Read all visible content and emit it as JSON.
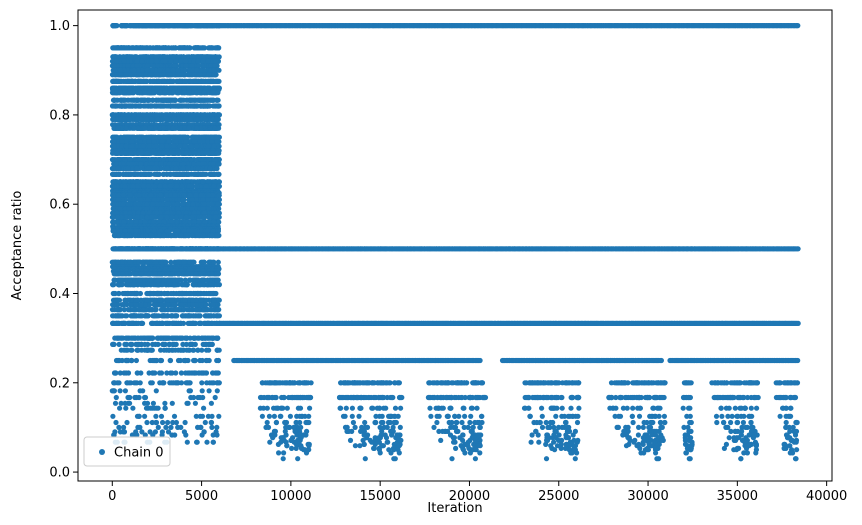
{
  "chart_data": {
    "type": "scatter",
    "xlabel": "Iteration",
    "ylabel": "Acceptance ratio",
    "xlim": [
      -1920,
      40300
    ],
    "ylim": [
      -0.02,
      1.035
    ],
    "xticks": [
      0,
      5000,
      10000,
      15000,
      20000,
      25000,
      30000,
      35000,
      40000
    ],
    "xtick_labels": [
      "0",
      "5000",
      "10000",
      "15000",
      "20000",
      "25000",
      "30000",
      "35000",
      "40000"
    ],
    "yticks": [
      0.0,
      0.2,
      0.4,
      0.6,
      0.8,
      1.0
    ],
    "ytick_labels": [
      "0.0",
      "0.2",
      "0.4",
      "0.6",
      "0.8",
      "1.0"
    ],
    "grid": false,
    "legend": {
      "position": "lower-left",
      "entries": [
        "Chain 0"
      ]
    },
    "colors": {
      "series": "#1f77b4"
    },
    "series": [
      {
        "name": "Chain 0",
        "marker": "circle",
        "segments": [
          {
            "x_range": [
              0,
              6000
            ],
            "y_values": [
              1.0,
              0.95,
              0.93,
              0.92,
              0.91,
              0.9,
              0.89,
              0.875,
              0.86,
              0.857,
              0.85,
              0.833,
              0.82,
              0.8,
              0.79,
              0.778,
              0.77,
              0.75,
              0.74,
              0.73,
              0.72,
              0.714,
              0.7,
              0.69,
              0.68,
              0.667,
              0.65,
              0.64,
              0.63,
              0.625,
              0.62,
              0.61,
              0.6,
              0.59,
              0.58,
              0.571,
              0.56,
              0.55,
              0.545,
              0.54,
              0.53,
              0.5,
              0.47,
              0.46,
              0.455,
              0.45,
              0.444,
              0.43,
              0.42,
              0.4,
              0.385,
              0.375,
              0.364,
              0.35,
              0.333,
              0.3,
              0.286,
              0.273,
              0.25,
              0.222,
              0.2,
              0.182,
              0.167,
              0.154,
              0.143,
              0.125,
              0.111,
              0.1,
              0.09,
              0.083,
              0.067
            ]
          },
          {
            "x_range": [
              6000,
              38400
            ],
            "y_values": [
              1.0,
              0.5,
              0.333
            ]
          },
          {
            "x_range": [
              6800,
              38400
            ],
            "y_values": [
              0.25
            ]
          },
          {
            "x_range": [
              7500,
              38400
            ],
            "y_values": [
              0.2
            ]
          },
          {
            "x_range": [
              7500,
              38400
            ],
            "y_values": [
              0.167
            ]
          },
          {
            "x_range": [
              8000,
              38400
            ],
            "y_values": [
              0.143,
              0.125,
              0.111,
              0.1,
              0.091,
              0.083,
              0.077,
              0.071,
              0.067,
              0.062,
              0.059,
              0.053,
              0.05,
              0.043,
              0.03
            ]
          }
        ]
      }
    ]
  }
}
